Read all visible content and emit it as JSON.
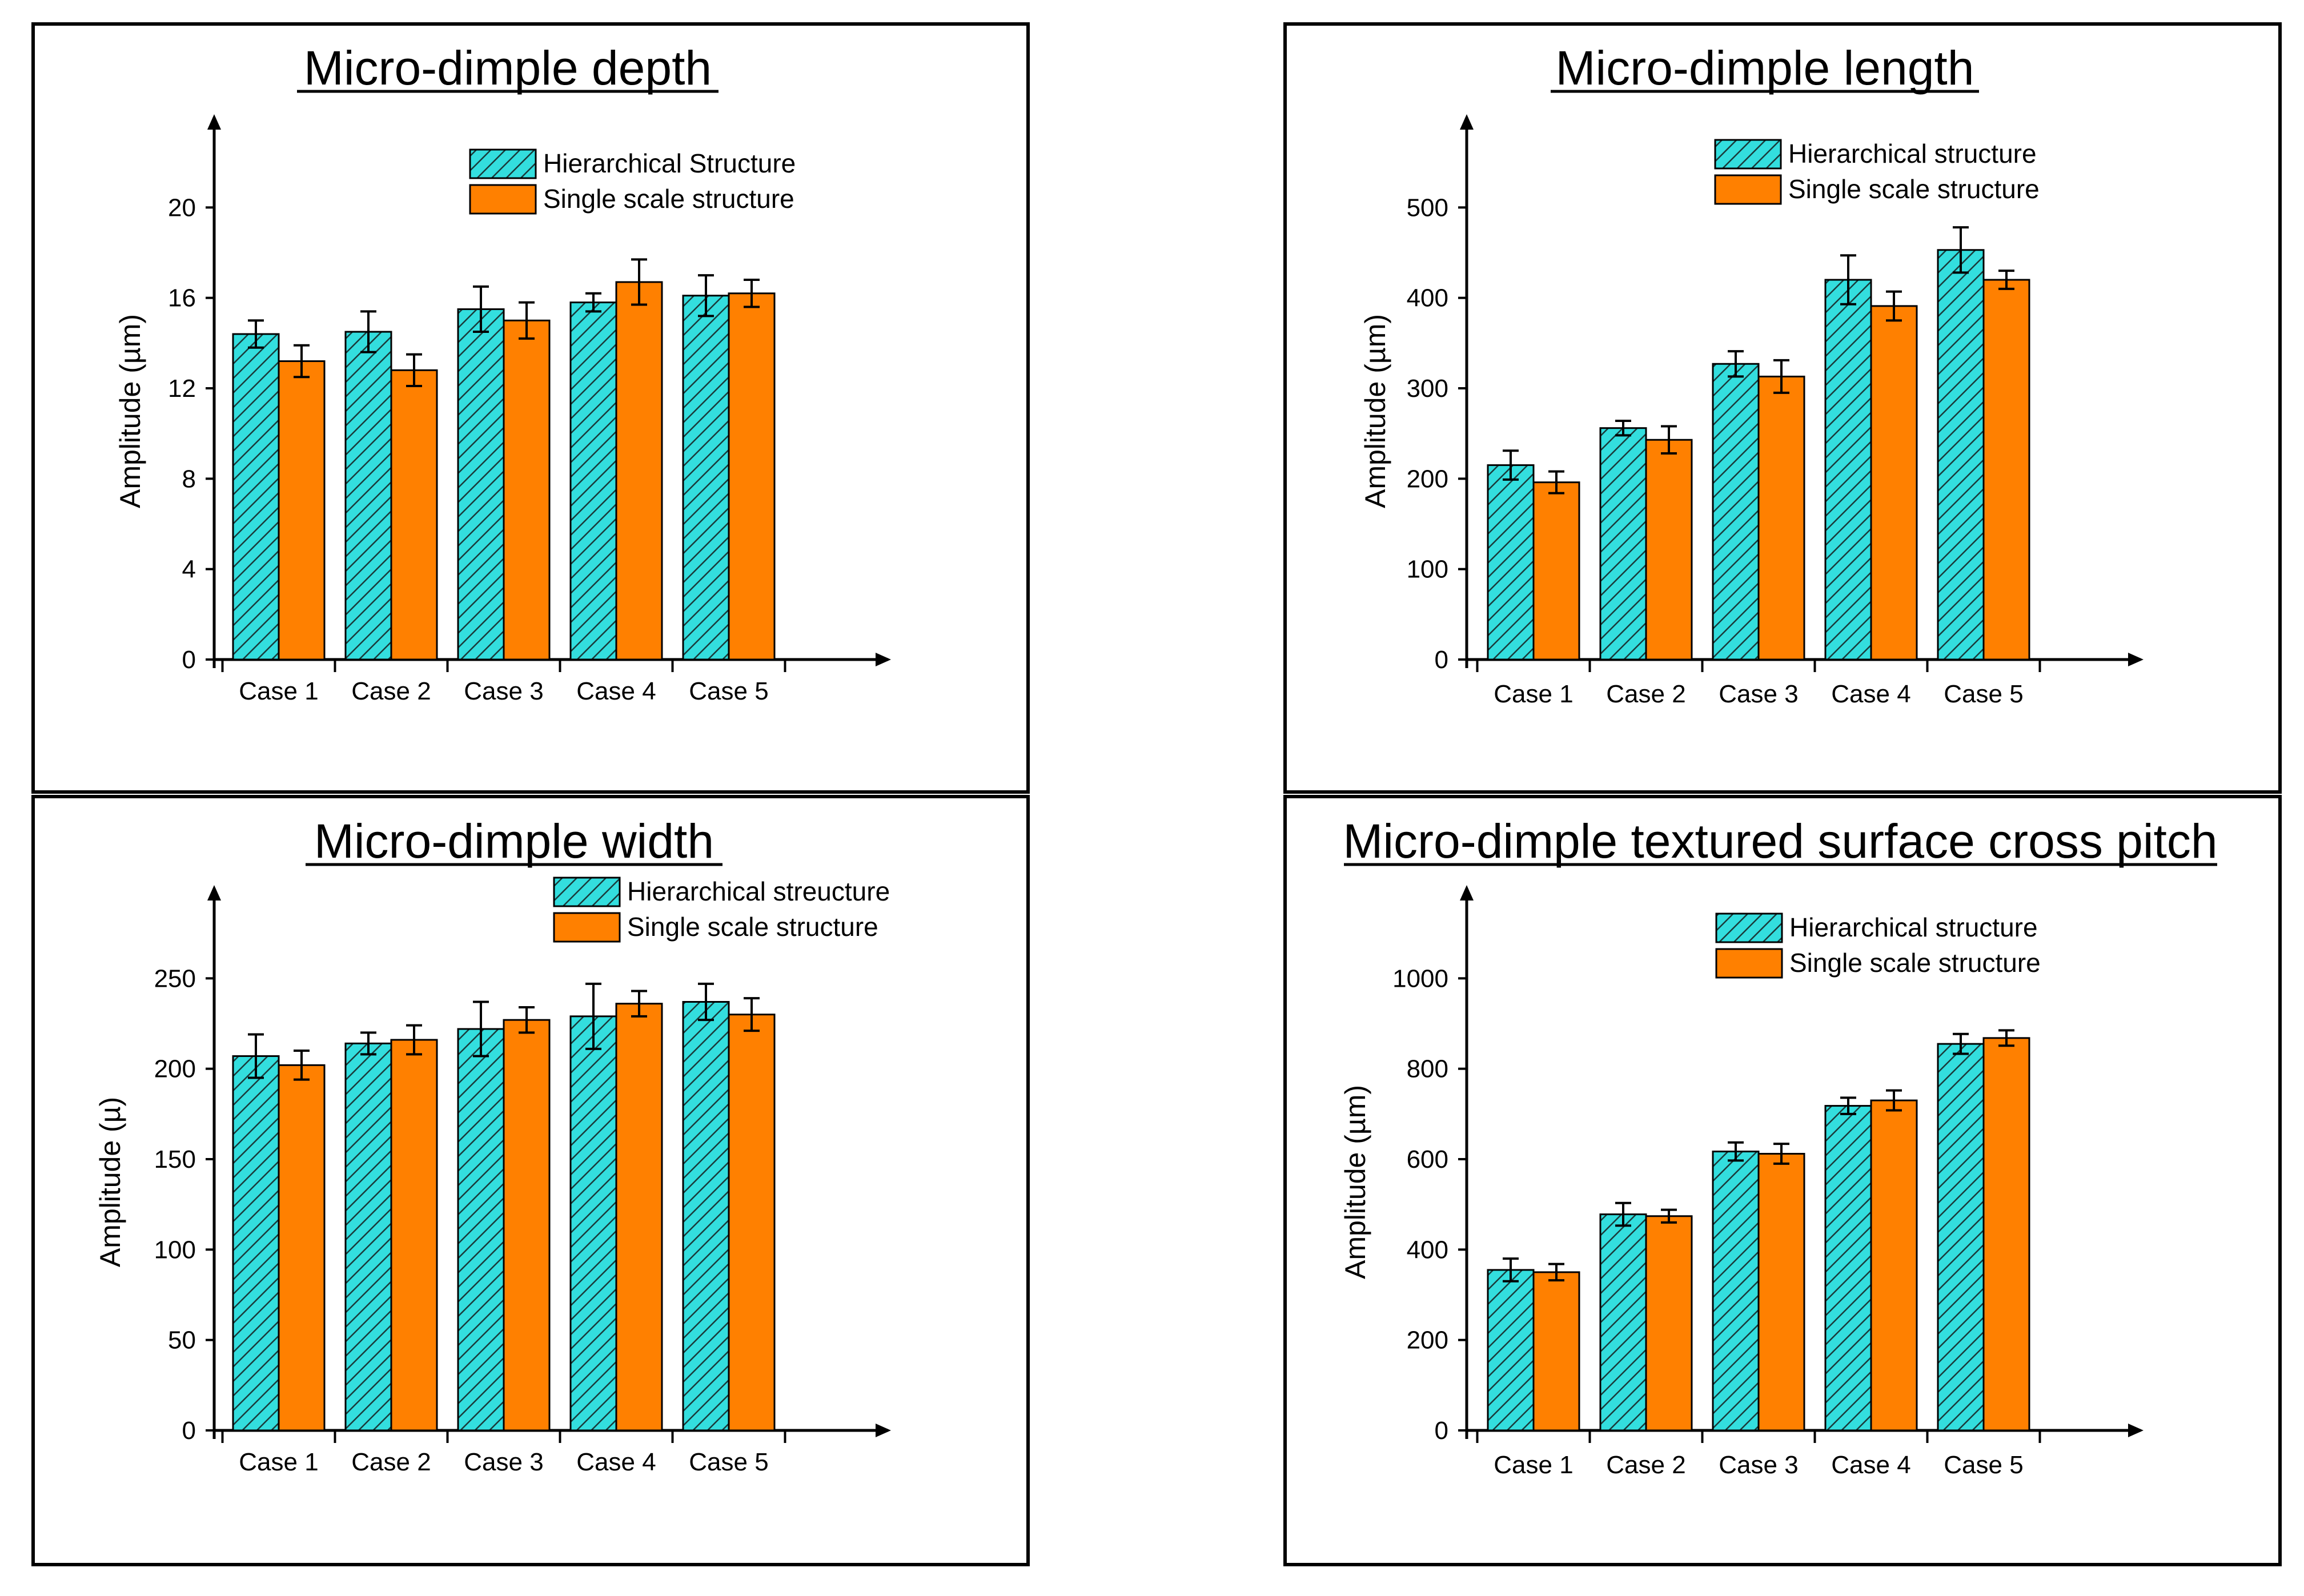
{
  "colors": {
    "hierarchical": "#33dede",
    "single": "#ff8000",
    "hatch": "#1a3a3a",
    "axis": "#000000"
  },
  "chart_data": [
    {
      "type": "bar",
      "title": "Micro-dimple depth",
      "xlabel": "",
      "ylabel": "Amplitude (µm)",
      "categories": [
        "Case 1",
        "Case 2",
        "Case 3",
        "Case 4",
        "Case 5"
      ],
      "ylim": [
        0,
        24
      ],
      "yticks": [
        0,
        4,
        8,
        12,
        16,
        20
      ],
      "legend_position": "top-right",
      "series": [
        {
          "name": "Hierarchical Structure",
          "key": "hierarchical",
          "values": [
            14.4,
            14.5,
            15.5,
            15.8,
            16.1
          ],
          "errors": [
            0.6,
            0.9,
            1.0,
            0.4,
            0.9
          ]
        },
        {
          "name": "Single scale structure",
          "key": "single",
          "values": [
            13.2,
            12.8,
            15.0,
            16.7,
            16.2
          ],
          "errors": [
            0.7,
            0.7,
            0.8,
            1.0,
            0.6
          ]
        }
      ]
    },
    {
      "type": "bar",
      "title": "Micro-dimple length",
      "xlabel": "",
      "ylabel": "Amplitude (µm)",
      "categories": [
        "Case 1",
        "Case 2",
        "Case 3",
        "Case 4",
        "Case 5"
      ],
      "ylim": [
        0,
        600
      ],
      "yticks": [
        0,
        100,
        200,
        300,
        400,
        500
      ],
      "legend_position": "top-right",
      "series": [
        {
          "name": "Hierarchical structure",
          "key": "hierarchical",
          "values": [
            215,
            256,
            327,
            420,
            453
          ],
          "errors": [
            16,
            8,
            14,
            27,
            25
          ]
        },
        {
          "name": "Single scale structure",
          "key": "single",
          "values": [
            196,
            243,
            313,
            391,
            420
          ],
          "errors": [
            12,
            15,
            18,
            16,
            10
          ]
        }
      ]
    },
    {
      "type": "bar",
      "title": "Micro-dimple width",
      "xlabel": "",
      "ylabel": "Amplitude  (µ)",
      "categories": [
        "Case 1",
        "Case 2",
        "Case 3",
        "Case 4",
        "Case 5"
      ],
      "ylim": [
        0,
        300
      ],
      "yticks": [
        0,
        50,
        100,
        150,
        200,
        250
      ],
      "legend_position": "top-right",
      "series": [
        {
          "name": "Hierarchical streucture",
          "key": "hierarchical",
          "values": [
            207,
            214,
            222,
            229,
            237
          ],
          "errors": [
            12,
            6,
            15,
            18,
            10
          ]
        },
        {
          "name": "Single scale structure",
          "key": "single",
          "values": [
            202,
            216,
            227,
            236,
            230
          ],
          "errors": [
            8,
            8,
            7,
            7,
            9
          ]
        }
      ]
    },
    {
      "type": "bar",
      "title": "Micro-dimple textured surface cross pitch",
      "xlabel": "",
      "ylabel": "Amplitude (µm)",
      "categories": [
        "Case 1",
        "Case 2",
        "Case 3",
        "Case 4",
        "Case 5"
      ],
      "ylim": [
        0,
        1200
      ],
      "yticks": [
        0,
        200,
        400,
        600,
        800,
        1000
      ],
      "legend_position": "top-right",
      "series": [
        {
          "name": "Hierarchical structure",
          "key": "hierarchical",
          "values": [
            355,
            478,
            617,
            718,
            855
          ],
          "errors": [
            25,
            25,
            20,
            18,
            22
          ]
        },
        {
          "name": "Single scale structure",
          "key": "single",
          "values": [
            350,
            474,
            612,
            730,
            868
          ],
          "errors": [
            18,
            14,
            22,
            22,
            17
          ]
        }
      ]
    }
  ]
}
